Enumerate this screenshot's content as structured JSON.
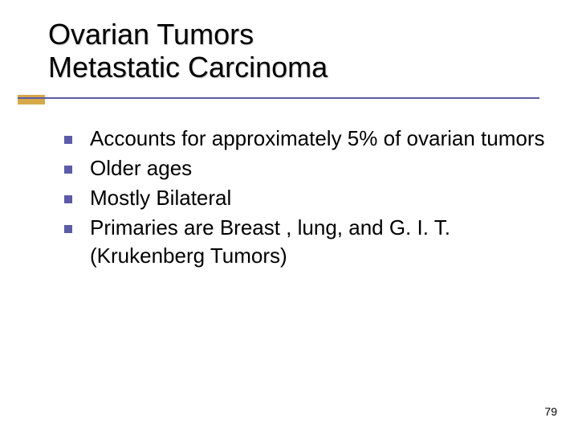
{
  "slide": {
    "title_line1": "Ovarian Tumors",
    "title_line2": "Metastatic Carcinoma",
    "title_color": "#000000",
    "title_fontsize": 36,
    "underline_main_color": "#5b5ba8",
    "underline_accent_color": "#d6a84a",
    "bullets": [
      {
        "text": "Accounts for approximately 5% of ovarian tumors"
      },
      {
        "text": "Older ages"
      },
      {
        "text": "Mostly Bilateral"
      },
      {
        "text": "Primaries are Breast , lung, and G. I. T. (Krukenberg Tumors)"
      }
    ],
    "bullet_square_color": "#5b5ba8",
    "bullet_fontsize": 26,
    "page_number": "79",
    "background_color": "#ffffff"
  }
}
